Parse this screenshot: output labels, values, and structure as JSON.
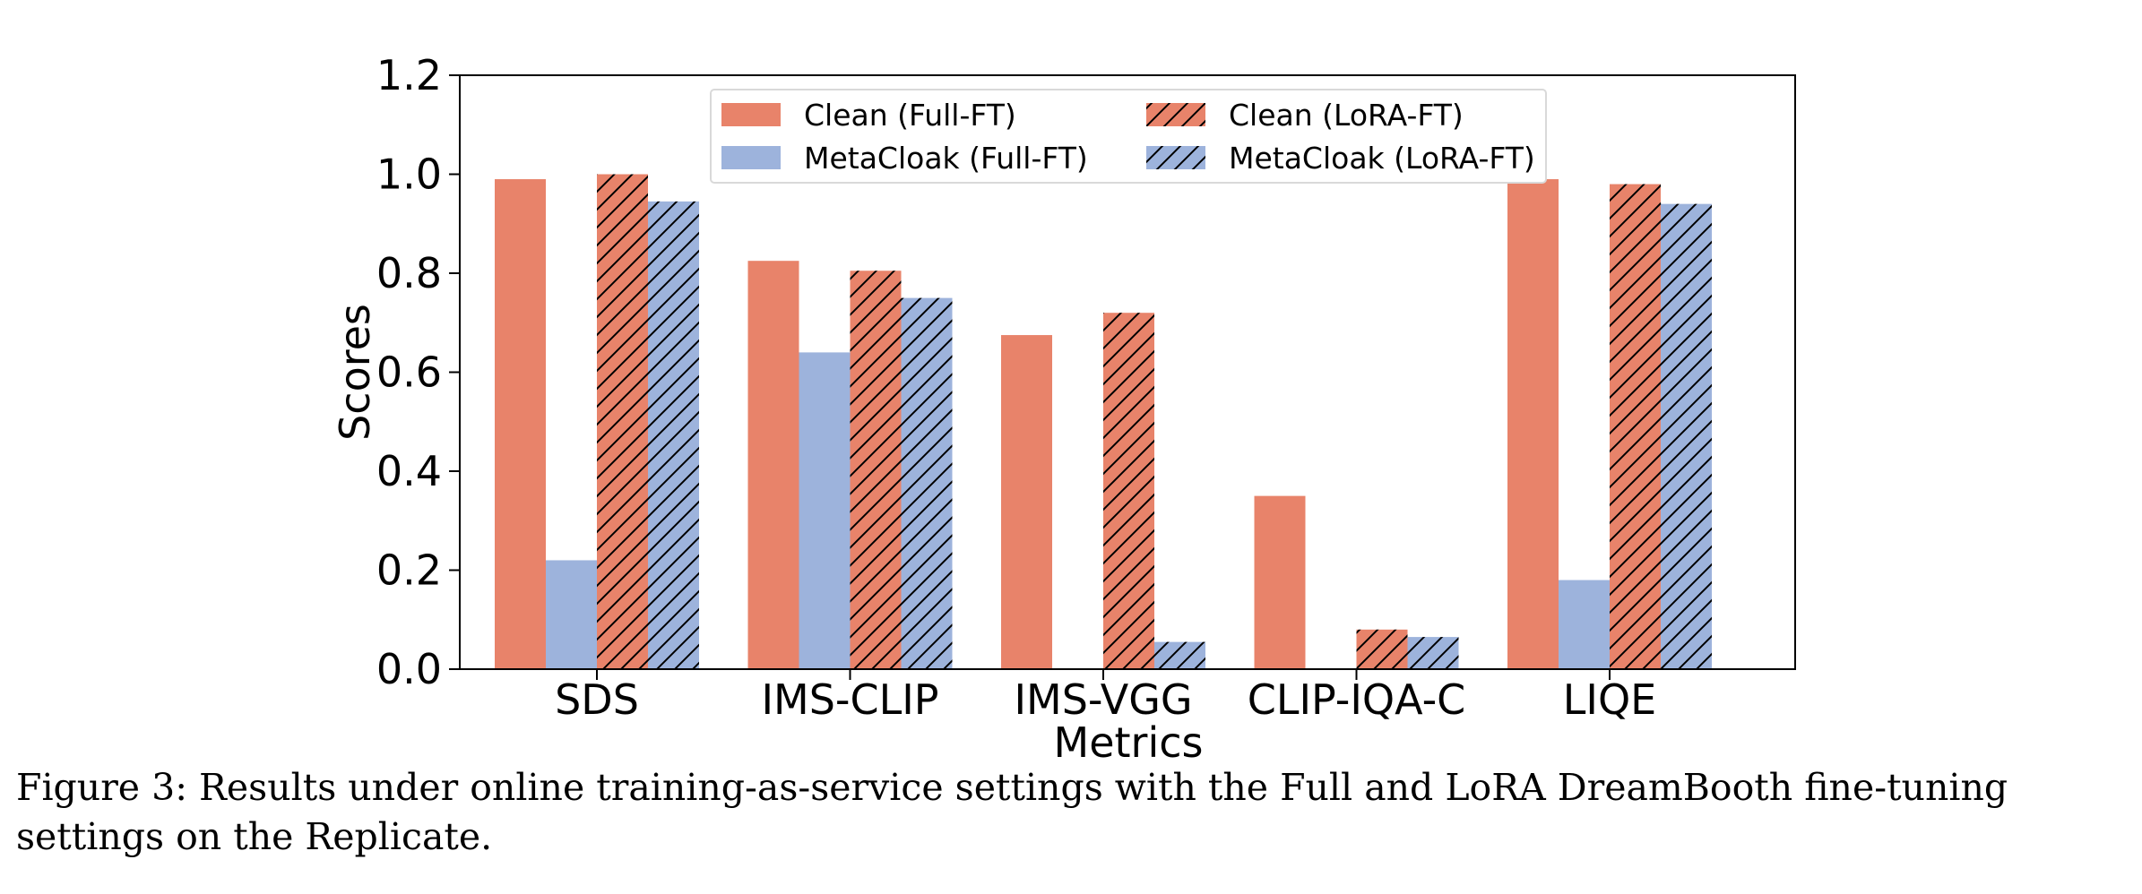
{
  "chart_data": {
    "type": "bar",
    "categories": [
      "SDS",
      "IMS-CLIP",
      "IMS-VGG",
      "CLIP-IQA-C",
      "LIQE"
    ],
    "series": [
      {
        "name": "Clean (Full-FT)",
        "values": [
          0.99,
          0.825,
          0.675,
          0.35,
          0.99
        ],
        "color": "#E8836A",
        "hatch": false
      },
      {
        "name": "MetaCloak (Full-FT)",
        "values": [
          0.22,
          0.64,
          0.0,
          0.0,
          0.18
        ],
        "color": "#9DB3DC",
        "hatch": false
      },
      {
        "name": "Clean (LoRA-FT)",
        "values": [
          1.0,
          0.805,
          0.72,
          0.08,
          0.98
        ],
        "color": "#E8836A",
        "hatch": true
      },
      {
        "name": "MetaCloak (LoRA-FT)",
        "values": [
          0.945,
          0.75,
          0.055,
          0.065,
          0.94
        ],
        "color": "#9DB3DC",
        "hatch": true
      }
    ],
    "xlabel": "Metrics",
    "ylabel": "Scores",
    "ylim": [
      0.0,
      1.2
    ],
    "yticks": [
      "0.0",
      "0.2",
      "0.4",
      "0.6",
      "0.8",
      "1.0",
      "1.2"
    ],
    "legend_position": "top-center",
    "grid": false
  },
  "caption": "Figure 3: Results under online training-as-service settings with the Full and LoRA DreamBooth fine-tuning settings on the Replicate."
}
